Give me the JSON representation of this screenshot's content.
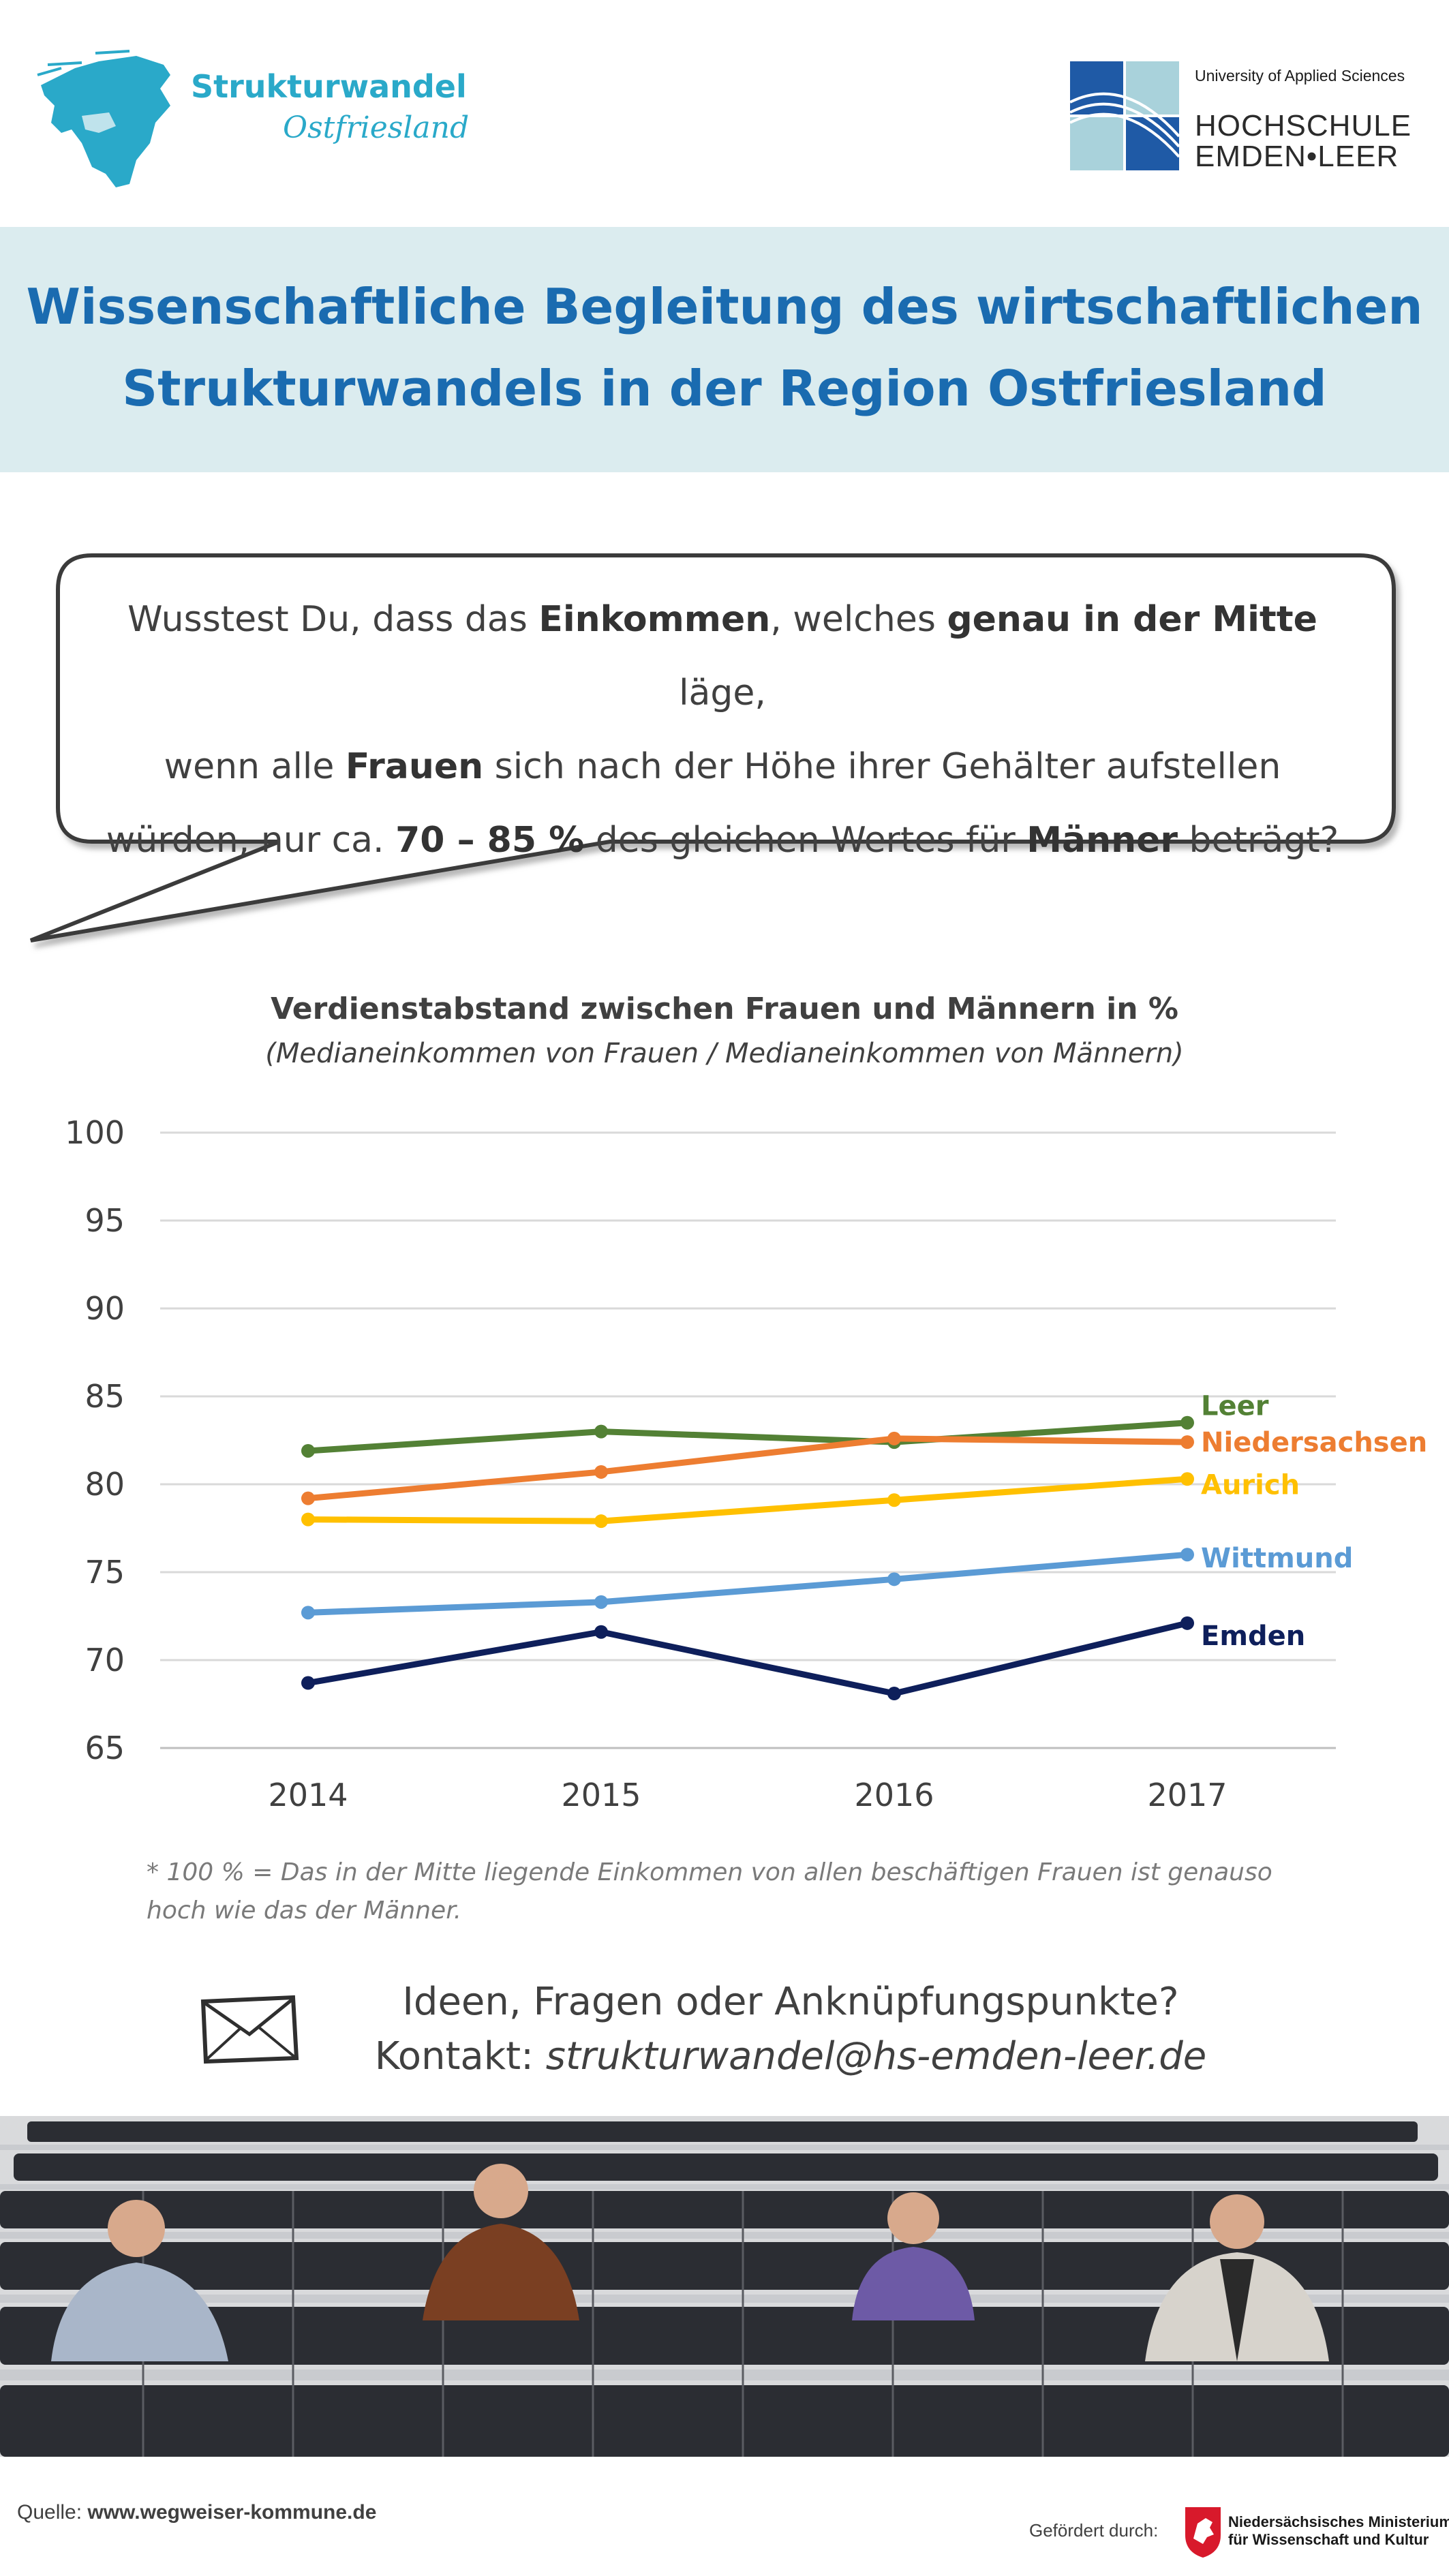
{
  "header": {
    "brand_line1": "Strukturwandel",
    "brand_line2": "Ostfriesland",
    "university_tag": "University of Applied Sciences",
    "university_line1": "HOCHSCHULE",
    "university_line2": "EMDEN•LEER"
  },
  "banner": {
    "line1": "Wissenschaftliche Begleitung des wirtschaftlichen",
    "line2": "Strukturwandels in der Region Ostfriesland"
  },
  "bubble": {
    "p1": "Wusstest Du, dass das ",
    "b1": "Einkommen",
    "p2": ", welches ",
    "b2": "genau in der Mitte",
    "p3": " läge,",
    "p4": "wenn alle ",
    "b3": "Frauen",
    "p5": " sich nach der Höhe ihrer Gehälter aufstellen",
    "p6": "würden, nur ca. ",
    "b4": "70 – 85 %",
    "p7": " des gleichen Wertes für ",
    "b5": "Männer",
    "p8": " beträgt?"
  },
  "chart_data": {
    "type": "line",
    "title": "Verdienstabstand zwischen Frauen und Männern in %",
    "subtitle": "(Medianeinkommen von Frauen / Medianeinkommen von Männern)",
    "xlabel": "",
    "ylabel": "",
    "x": [
      "2014",
      "2015",
      "2016",
      "2017"
    ],
    "ylim": [
      65,
      100
    ],
    "yticks": [
      100,
      95,
      90,
      85,
      80,
      75,
      70,
      65
    ],
    "grid": true,
    "legend": "inline-right",
    "series": [
      {
        "name": "Leer",
        "color": "#538135",
        "values": [
          81.9,
          83.0,
          82.4,
          83.5
        ]
      },
      {
        "name": "Niedersachsen",
        "color": "#ed7d31",
        "values": [
          79.2,
          80.7,
          82.6,
          82.4
        ]
      },
      {
        "name": "Aurich",
        "color": "#ffc000",
        "values": [
          78.0,
          77.9,
          79.1,
          80.3
        ]
      },
      {
        "name": "Wittmund",
        "color": "#5b9bd5",
        "values": [
          72.7,
          73.3,
          74.6,
          76.0
        ]
      },
      {
        "name": "Emden",
        "color": "#0e1f5b",
        "values": [
          68.7,
          71.6,
          68.1,
          72.1
        ]
      }
    ]
  },
  "footnote": {
    "line1": "* 100 % = Das in der Mitte liegende Einkommen von allen beschäftigen Frauen ist genauso",
    "line2": "hoch wie das der Männer."
  },
  "contact": {
    "question": "Ideen, Fragen oder Anknüpfungspunkte?",
    "prefix": "Kontakt: ",
    "email": "strukturwandel@hs-emden-leer.de"
  },
  "footer": {
    "source_label": "Quelle: ",
    "source_url": "www.wegweiser-kommune.de",
    "funded_label": "Gefördert durch:",
    "ministry_line1": "Niedersächsisches Ministerium",
    "ministry_line2": "für Wissenschaft und Kultur"
  },
  "colors": {
    "title_blue": "#1a6bb0",
    "banner_bg": "#dbecef",
    "brand_teal": "#2aa9c9"
  }
}
